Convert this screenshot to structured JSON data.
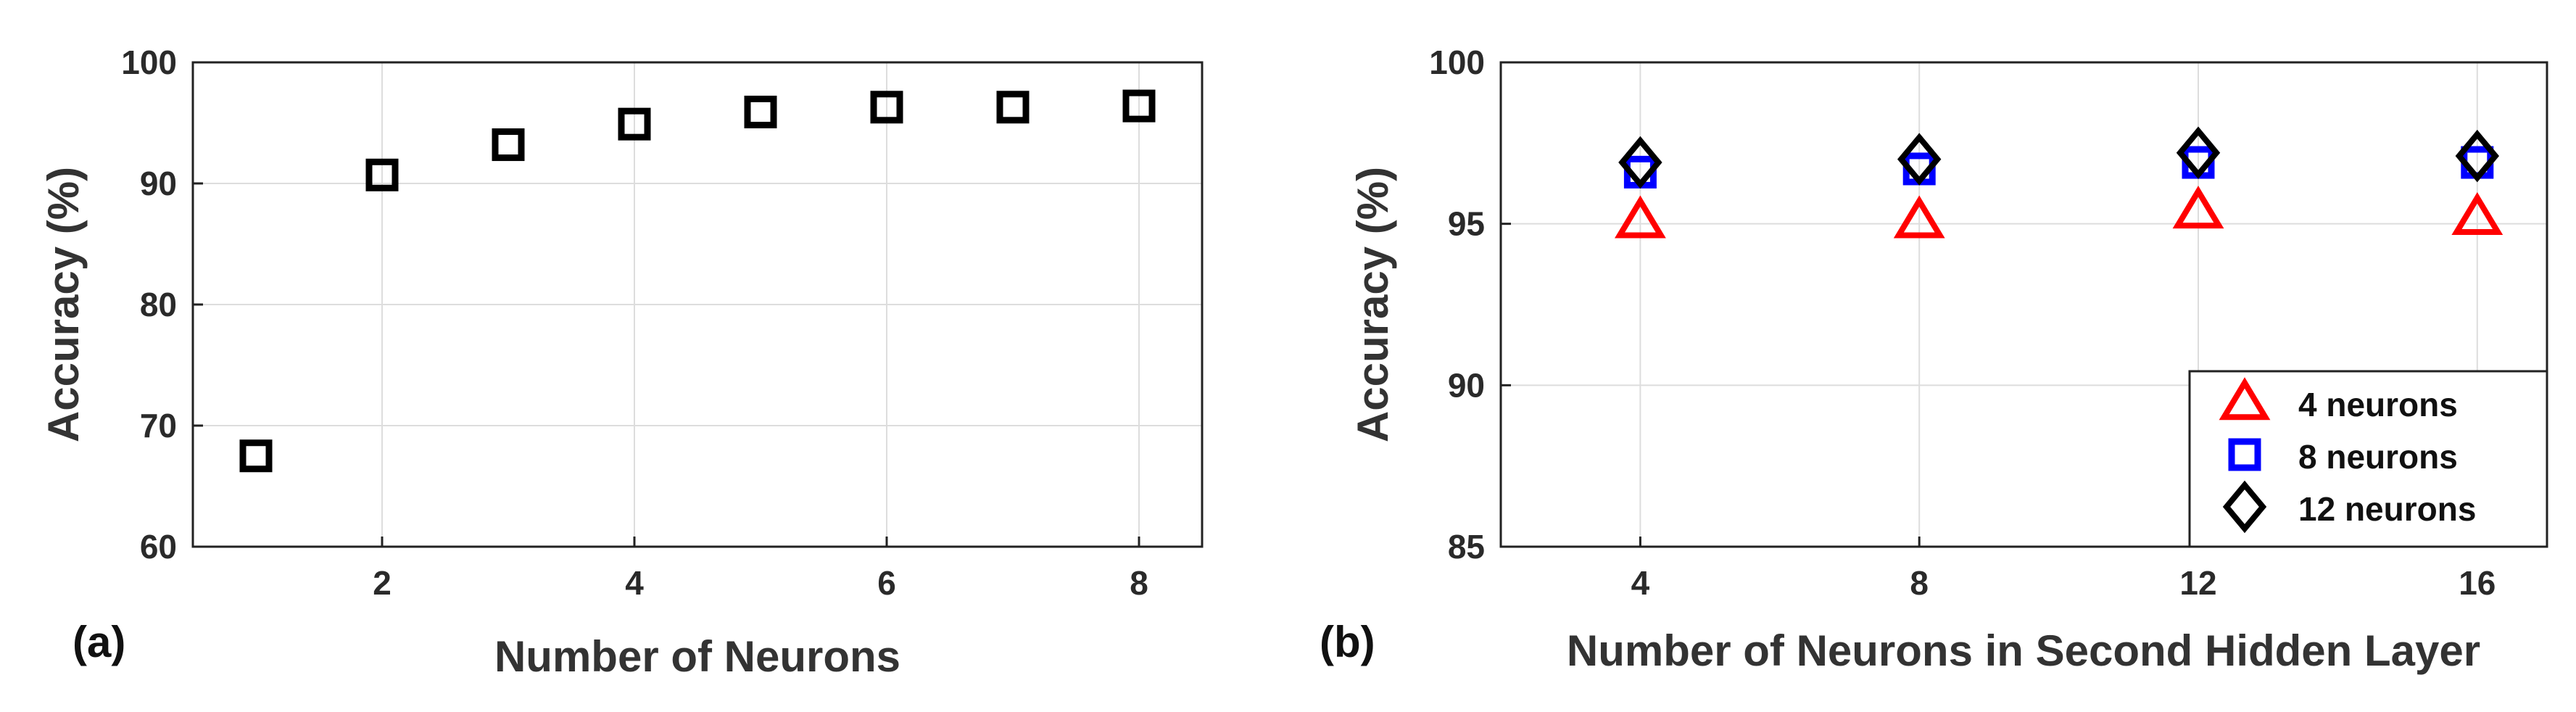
{
  "chart_data": [
    {
      "panel_label": "(a)",
      "type": "scatter",
      "xlabel": "Number of Neurons",
      "ylabel": "Accuracy (%)",
      "xlim": [
        0.5,
        8.5
      ],
      "ylim": [
        60,
        100
      ],
      "xticks": [
        2,
        4,
        6,
        8
      ],
      "yticks": [
        60,
        70,
        80,
        90,
        100
      ],
      "grid": true,
      "series": [
        {
          "marker": "square",
          "color": "#000000",
          "points": [
            {
              "x": 1,
              "y": 67.5
            },
            {
              "x": 2,
              "y": 90.7
            },
            {
              "x": 3,
              "y": 93.2
            },
            {
              "x": 4,
              "y": 94.9
            },
            {
              "x": 5,
              "y": 95.9
            },
            {
              "x": 6,
              "y": 96.3
            },
            {
              "x": 7,
              "y": 96.3
            },
            {
              "x": 8,
              "y": 96.4
            }
          ]
        }
      ]
    },
    {
      "panel_label": "(b)",
      "type": "scatter",
      "xlabel": "Number of Neurons in Second Hidden Layer",
      "ylabel": "Accuracy (%)",
      "xlim": [
        2,
        17
      ],
      "ylim": [
        85,
        100
      ],
      "xticks": [
        4,
        8,
        12,
        16
      ],
      "yticks": [
        85,
        90,
        95,
        100
      ],
      "grid": true,
      "legend_position": "bottom-right",
      "series": [
        {
          "name": "4 neurons",
          "marker": "triangle",
          "color": "#ff0000",
          "points": [
            {
              "x": 4,
              "y": 95.1
            },
            {
              "x": 8,
              "y": 95.1
            },
            {
              "x": 12,
              "y": 95.4
            },
            {
              "x": 16,
              "y": 95.2
            }
          ]
        },
        {
          "name": "8 neurons",
          "marker": "square",
          "color": "#0000ff",
          "points": [
            {
              "x": 4,
              "y": 96.6
            },
            {
              "x": 8,
              "y": 96.7
            },
            {
              "x": 12,
              "y": 96.9
            },
            {
              "x": 16,
              "y": 96.9
            }
          ]
        },
        {
          "name": "12 neurons",
          "marker": "diamond",
          "color": "#000000",
          "points": [
            {
              "x": 4,
              "y": 96.9
            },
            {
              "x": 8,
              "y": 97.0
            },
            {
              "x": 12,
              "y": 97.2
            },
            {
              "x": 16,
              "y": 97.1
            }
          ]
        }
      ]
    }
  ]
}
